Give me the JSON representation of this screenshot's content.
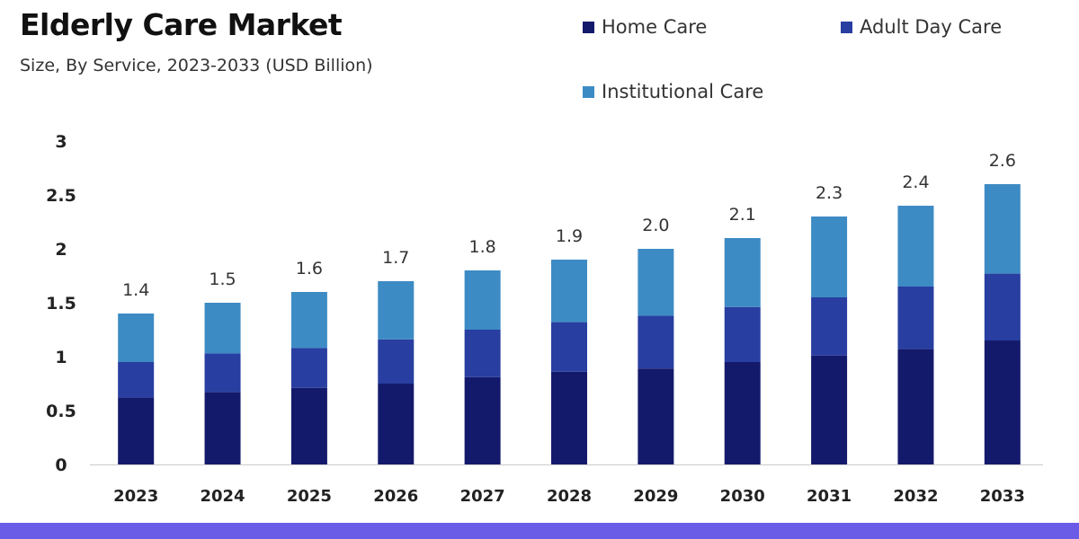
{
  "chart_data": {
    "type": "bar",
    "stacked": true,
    "title": "Elderly Care Market",
    "subtitle": "Size, By Service, 2023-2033 (USD Billion)",
    "categories": [
      "2023",
      "2024",
      "2025",
      "2026",
      "2027",
      "2028",
      "2029",
      "2030",
      "2031",
      "2032",
      "2033"
    ],
    "series": [
      {
        "name": "Home Care",
        "color": "#141a6b",
        "values": [
          0.62,
          0.67,
          0.71,
          0.75,
          0.81,
          0.86,
          0.89,
          0.95,
          1.01,
          1.07,
          1.15
        ]
      },
      {
        "name": "Adult Day Care",
        "color": "#283ea0",
        "values": [
          0.33,
          0.36,
          0.37,
          0.41,
          0.44,
          0.46,
          0.49,
          0.51,
          0.54,
          0.58,
          0.62
        ]
      },
      {
        "name": "Institutional Care",
        "color": "#3d8bc4",
        "values": [
          0.45,
          0.47,
          0.52,
          0.54,
          0.55,
          0.58,
          0.62,
          0.64,
          0.75,
          0.75,
          0.83
        ]
      }
    ],
    "totals_labels": [
      "1.4",
      "1.5",
      "1.6",
      "1.7",
      "1.8",
      "1.9",
      "2.0",
      "2.1",
      "2.3",
      "2.4",
      "2.6"
    ],
    "y_ticks": [
      "0",
      "0.5",
      "1",
      "1.5",
      "2",
      "2.5",
      "3"
    ],
    "ylim": [
      0,
      3
    ],
    "grid": false,
    "legend_position": "top-right"
  },
  "colors": {
    "accent_band": "#6b5ce7"
  }
}
